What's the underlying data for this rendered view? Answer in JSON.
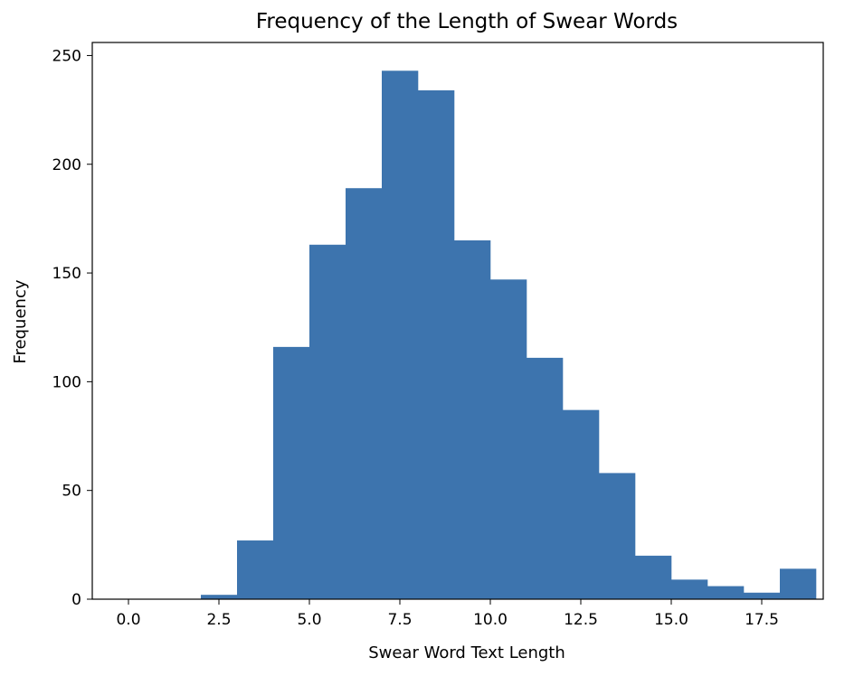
{
  "chart_data": {
    "type": "bar",
    "title": "Frequency of the Length of Swear Words",
    "xlabel": "Swear Word Text Length",
    "ylabel": "Frequency",
    "bins": [
      {
        "start": 2,
        "end": 3,
        "count": 2
      },
      {
        "start": 3,
        "end": 4,
        "count": 27
      },
      {
        "start": 4,
        "end": 5,
        "count": 116
      },
      {
        "start": 5,
        "end": 6,
        "count": 163
      },
      {
        "start": 6,
        "end": 7,
        "count": 189
      },
      {
        "start": 7,
        "end": 8,
        "count": 243
      },
      {
        "start": 8,
        "end": 9,
        "count": 234
      },
      {
        "start": 9,
        "end": 10,
        "count": 165
      },
      {
        "start": 10,
        "end": 11,
        "count": 147
      },
      {
        "start": 11,
        "end": 12,
        "count": 111
      },
      {
        "start": 12,
        "end": 13,
        "count": 87
      },
      {
        "start": 13,
        "end": 14,
        "count": 58
      },
      {
        "start": 14,
        "end": 15,
        "count": 20
      },
      {
        "start": 15,
        "end": 16,
        "count": 9
      },
      {
        "start": 16,
        "end": 17,
        "count": 6
      },
      {
        "start": 17,
        "end": 18,
        "count": 3
      },
      {
        "start": 18,
        "end": 19,
        "count": 14
      }
    ],
    "xlim": [
      -1,
      19.2
    ],
    "ylim": [
      0,
      256
    ],
    "xticks": [
      "0.0",
      "2.5",
      "5.0",
      "7.5",
      "10.0",
      "12.5",
      "15.0",
      "17.5"
    ],
    "yticks": [
      "0",
      "50",
      "100",
      "150",
      "200",
      "250"
    ],
    "bar_color": "#3d74ae",
    "grid": false
  }
}
